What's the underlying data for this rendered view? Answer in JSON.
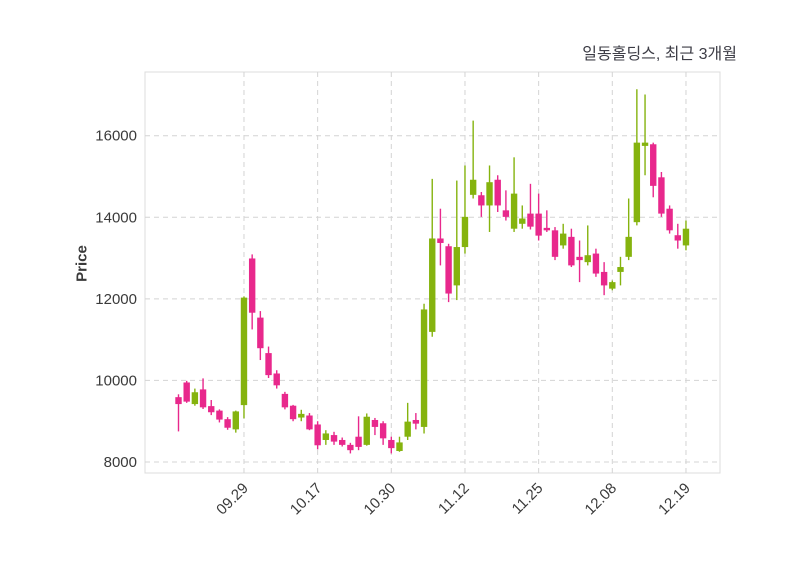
{
  "header": {
    "title": "일동홀딩스, 최근 3개월"
  },
  "chart_data": {
    "type": "candlestick",
    "title": "일동홀딩스, 최근 3개월",
    "xlabel": "",
    "ylabel": "Price",
    "grid": true,
    "legend_position": "none",
    "y_ticks": [
      8000,
      10000,
      12000,
      14000,
      16000
    ],
    "ylim": [
      7730,
      17560
    ],
    "x_tick_labels": [
      "09.29",
      "10.17",
      "10.30",
      "11.12",
      "11.25",
      "12.08",
      "12.19"
    ],
    "x_tick_indices": [
      8,
      17,
      26,
      35,
      44,
      53,
      62
    ],
    "colors": {
      "up": "#85b30e",
      "down": "#e8288c",
      "grid": "#d4d4d4",
      "border": "#dcdcdc",
      "axis_text": "#3a3a3a",
      "title_text": "#3d3d46",
      "background": "#ffffff"
    },
    "candle_order": [
      "open",
      "high",
      "low",
      "close"
    ],
    "candles": [
      [
        9590,
        9660,
        8750,
        9420
      ],
      [
        9950,
        9990,
        9450,
        9480
      ],
      [
        9420,
        9800,
        9380,
        9710
      ],
      [
        9780,
        10050,
        9300,
        9340
      ],
      [
        9370,
        9520,
        9150,
        9220
      ],
      [
        9260,
        9290,
        8970,
        9040
      ],
      [
        9050,
        9100,
        8790,
        8840
      ],
      [
        8800,
        9260,
        8720,
        9240
      ],
      [
        9395,
        12060,
        9070,
        12030
      ],
      [
        12990,
        13090,
        11250,
        11660
      ],
      [
        11540,
        11700,
        10500,
        10790
      ],
      [
        10670,
        10830,
        10060,
        10130
      ],
      [
        10170,
        10250,
        9800,
        9880
      ],
      [
        9670,
        9720,
        9290,
        9340
      ],
      [
        9380,
        9400,
        9000,
        9050
      ],
      [
        9090,
        9280,
        9000,
        9180
      ],
      [
        9140,
        9200,
        8780,
        8800
      ],
      [
        8920,
        9000,
        8310,
        8410
      ],
      [
        8540,
        8780,
        8420,
        8700
      ],
      [
        8660,
        8740,
        8420,
        8500
      ],
      [
        8540,
        8600,
        8380,
        8420
      ],
      [
        8420,
        8470,
        8210,
        8290
      ],
      [
        8620,
        9120,
        8290,
        8370
      ],
      [
        8420,
        9190,
        8400,
        9110
      ],
      [
        9030,
        9080,
        8660,
        8860
      ],
      [
        8950,
        9000,
        8420,
        8580
      ],
      [
        8540,
        8620,
        8210,
        8340
      ],
      [
        8270,
        8620,
        8250,
        8480
      ],
      [
        8620,
        9450,
        8540,
        8990
      ],
      [
        9030,
        9200,
        8800,
        8940
      ],
      [
        8860,
        11880,
        8700,
        11740
      ],
      [
        11190,
        14940,
        11070,
        13480
      ],
      [
        13480,
        14210,
        12820,
        13370
      ],
      [
        13290,
        13350,
        11920,
        12130
      ],
      [
        12330,
        14900,
        11970,
        13270
      ],
      [
        13270,
        15270,
        13110,
        14010
      ],
      [
        14550,
        16370,
        14460,
        14920
      ],
      [
        14540,
        14620,
        14010,
        14290
      ],
      [
        14290,
        15270,
        13640,
        14860
      ],
      [
        14920,
        15030,
        14130,
        14290
      ],
      [
        14170,
        14660,
        13920,
        14010
      ],
      [
        13720,
        15470,
        13640,
        14580
      ],
      [
        13840,
        14290,
        13720,
        13970
      ],
      [
        14090,
        14820,
        13700,
        13770
      ],
      [
        14090,
        14580,
        13430,
        13550
      ],
      [
        13740,
        14170,
        13640,
        13680
      ],
      [
        13680,
        13760,
        12950,
        13030
      ],
      [
        13310,
        13840,
        13230,
        13600
      ],
      [
        13520,
        13720,
        12780,
        12820
      ],
      [
        13030,
        13430,
        12410,
        12950
      ],
      [
        12900,
        13800,
        12820,
        13070
      ],
      [
        13110,
        13230,
        12540,
        12620
      ],
      [
        12660,
        12900,
        12090,
        12330
      ],
      [
        12250,
        12450,
        12210,
        12410
      ],
      [
        12660,
        13030,
        12330,
        12780
      ],
      [
        13030,
        14460,
        12950,
        13520
      ],
      [
        13880,
        17140,
        13800,
        15830
      ],
      [
        15750,
        17010,
        15030,
        15830
      ],
      [
        15790,
        15830,
        14490,
        14770
      ],
      [
        14980,
        15110,
        14010,
        14090
      ],
      [
        14210,
        14290,
        13600,
        13680
      ],
      [
        13560,
        13840,
        13230,
        13430
      ],
      [
        13310,
        13920,
        13190,
        13720
      ]
    ]
  }
}
